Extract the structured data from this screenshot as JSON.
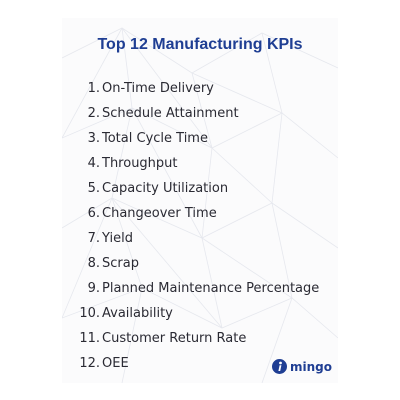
{
  "title": "Top 12 Manufacturing KPIs",
  "kpis": [
    {
      "number": "1.",
      "label": "On-Time Delivery"
    },
    {
      "number": "2.",
      "label": "Schedule Attainment"
    },
    {
      "number": "3.",
      "label": "Total Cycle Time"
    },
    {
      "number": "4.",
      "label": "Throughput"
    },
    {
      "number": "5.",
      "label": "Capacity Utilization"
    },
    {
      "number": "6.",
      "label": "Changeover Time"
    },
    {
      "number": "7.",
      "label": "Yield"
    },
    {
      "number": "8.",
      "label": "Scrap"
    },
    {
      "number": "9.",
      "label": "Planned Maintenance Percentage"
    },
    {
      "number": "10.",
      "label": "Availability"
    },
    {
      "number": "11.",
      "label": "Customer Return Rate"
    },
    {
      "number": "12.",
      "label": "OEE"
    }
  ],
  "logo": {
    "text": "mingo",
    "icon": "mingo-logo-icon"
  },
  "colors": {
    "title": "#1f3e93",
    "text": "#2a2a33",
    "background": "#fbfbfc"
  }
}
